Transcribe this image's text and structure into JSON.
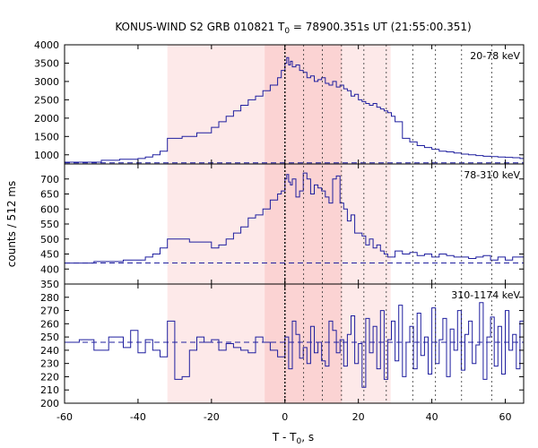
{
  "title": "KONUS-WIND S2 GRB 010821 T",
  "title_sub": "0",
  "title_rest": " = 78900.351s UT (21:55:00.351)",
  "ylabel": "counts / 512 ms",
  "xlabel_main": "T - T",
  "xlabel_sub": "0",
  "xlabel_unit": ", s",
  "colors": {
    "line": "#1f1f9f",
    "band_light": "#fde9e9",
    "band_dark": "#fbd3d3"
  },
  "chart_data": {
    "type": "line",
    "x_range": [
      -60,
      65
    ],
    "x_ticks": [
      -60,
      -40,
      -20,
      0,
      20,
      40,
      60
    ],
    "shaded_bands": [
      {
        "from": -32.0,
        "to": 28.8,
        "shade": "light"
      },
      {
        "from": -5.5,
        "to": 15.5,
        "shade": "dark"
      }
    ],
    "t0_line": 0,
    "dotted_lines": [
      5.1,
      10.2,
      15.4,
      21.5,
      27.6,
      34.8,
      41.0,
      48.1,
      56.3
    ],
    "panels": [
      {
        "label": "20-78 keV",
        "ylim": [
          750,
          4000
        ],
        "y_ticks": [
          1000,
          1500,
          2000,
          2500,
          3000,
          3500,
          4000
        ],
        "y_tick_labels": [
          "1000",
          "1500",
          "2000",
          "2500",
          "3000",
          "3500",
          "4000"
        ],
        "background": 780,
        "x": [
          -60,
          -50,
          -45,
          -40,
          -38,
          -36,
          -34,
          -32,
          -28,
          -24,
          -20,
          -18,
          -16,
          -14,
          -12,
          -10,
          -8,
          -6,
          -4,
          -2,
          -1,
          0,
          0.5,
          1,
          1.5,
          2,
          3,
          4,
          5,
          6,
          7,
          8,
          9,
          10,
          11,
          12,
          13,
          14,
          15,
          16,
          17,
          18,
          19,
          20,
          21,
          22,
          23,
          24,
          25,
          26,
          27,
          28,
          29,
          30,
          32,
          34,
          36,
          38,
          40,
          42,
          44,
          46,
          48,
          50,
          52,
          54,
          56,
          58,
          60,
          62,
          64,
          65
        ],
        "y": [
          800,
          850,
          880,
          900,
          940,
          1000,
          1100,
          1450,
          1500,
          1600,
          1750,
          1900,
          2050,
          2200,
          2350,
          2500,
          2600,
          2750,
          2900,
          3100,
          3300,
          3500,
          3650,
          3450,
          3550,
          3400,
          3450,
          3300,
          3250,
          3100,
          3150,
          3000,
          3050,
          3100,
          2950,
          2900,
          3000,
          2850,
          2900,
          2800,
          2750,
          2600,
          2650,
          2500,
          2450,
          2400,
          2350,
          2400,
          2300,
          2250,
          2200,
          2150,
          2050,
          1900,
          1450,
          1350,
          1250,
          1200,
          1150,
          1100,
          1080,
          1050,
          1020,
          1000,
          980,
          960,
          950,
          940,
          930,
          920,
          900,
          900
        ]
      },
      {
        "label": "78-310 keV",
        "ylim": [
          350,
          750
        ],
        "y_ticks": [
          350,
          400,
          450,
          500,
          550,
          600,
          650,
          700
        ],
        "y_tick_labels": [
          "350",
          "400",
          "450",
          "500",
          "550",
          "600",
          "650",
          "700"
        ],
        "background": 420,
        "x": [
          -60,
          -52,
          -44,
          -38,
          -36,
          -34,
          -32,
          -26,
          -20,
          -18,
          -16,
          -14,
          -12,
          -10,
          -8,
          -6,
          -4,
          -2,
          -1,
          0,
          0.5,
          1,
          1.5,
          2,
          3,
          4,
          5,
          6,
          7,
          8,
          9,
          10,
          11,
          12,
          13,
          14,
          15,
          16,
          17,
          18,
          19,
          20,
          21,
          22,
          23,
          24,
          25,
          26,
          27,
          28,
          30,
          32,
          34,
          36,
          38,
          40,
          42,
          44,
          46,
          48,
          50,
          52,
          54,
          56,
          58,
          60,
          62,
          64,
          65
        ],
        "y": [
          420,
          425,
          430,
          440,
          450,
          470,
          500,
          490,
          470,
          480,
          500,
          520,
          540,
          570,
          580,
          600,
          630,
          650,
          660,
          700,
          715,
          690,
          680,
          700,
          640,
          660,
          720,
          700,
          650,
          680,
          670,
          660,
          640,
          620,
          700,
          710,
          620,
          600,
          560,
          580,
          520,
          520,
          510,
          480,
          500,
          470,
          480,
          460,
          450,
          440,
          460,
          450,
          455,
          445,
          450,
          440,
          450,
          445,
          440,
          440,
          435,
          440,
          445,
          430,
          440,
          430,
          440,
          440,
          450
        ]
      },
      {
        "label": "310-1174 keV",
        "ylim": [
          200,
          290
        ],
        "y_ticks": [
          200,
          210,
          220,
          230,
          240,
          250,
          260,
          270,
          280
        ],
        "y_tick_labels": [
          "200",
          "210",
          "220",
          "230",
          "240",
          "250",
          "260",
          "270",
          "280"
        ],
        "background": 246,
        "x": [
          -60,
          -56,
          -52,
          -48,
          -44,
          -42,
          -40,
          -38,
          -36,
          -34,
          -32,
          -30,
          -28,
          -26,
          -24,
          -22,
          -20,
          -18,
          -16,
          -14,
          -12,
          -10,
          -8,
          -6,
          -4,
          -2,
          0,
          1,
          2,
          3,
          4,
          5,
          6,
          7,
          8,
          9,
          10,
          11,
          12,
          13,
          14,
          15,
          16,
          17,
          18,
          19,
          20,
          21,
          22,
          23,
          24,
          25,
          26,
          27,
          28,
          29,
          30,
          31,
          32,
          33,
          34,
          35,
          36,
          37,
          38,
          39,
          40,
          41,
          42,
          43,
          44,
          45,
          46,
          47,
          48,
          49,
          50,
          51,
          52,
          53,
          54,
          55,
          56,
          57,
          58,
          59,
          60,
          61,
          62,
          63,
          64,
          65
        ],
        "y": [
          246,
          248,
          240,
          250,
          242,
          255,
          238,
          248,
          240,
          235,
          262,
          218,
          220,
          240,
          250,
          246,
          248,
          240,
          245,
          242,
          240,
          238,
          250,
          246,
          240,
          235,
          250,
          226,
          262,
          252,
          234,
          242,
          230,
          258,
          238,
          246,
          232,
          228,
          262,
          255,
          238,
          248,
          228,
          252,
          266,
          230,
          245,
          212,
          264,
          238,
          258,
          226,
          270,
          218,
          248,
          262,
          232,
          274,
          220,
          246,
          258,
          226,
          268,
          236,
          250,
          222,
          272,
          230,
          248,
          264,
          220,
          256,
          240,
          270,
          225,
          252,
          262,
          230,
          244,
          276,
          218,
          250,
          265,
          228,
          258,
          222,
          270,
          240,
          252,
          226,
          262,
          246
        ]
      }
    ]
  }
}
